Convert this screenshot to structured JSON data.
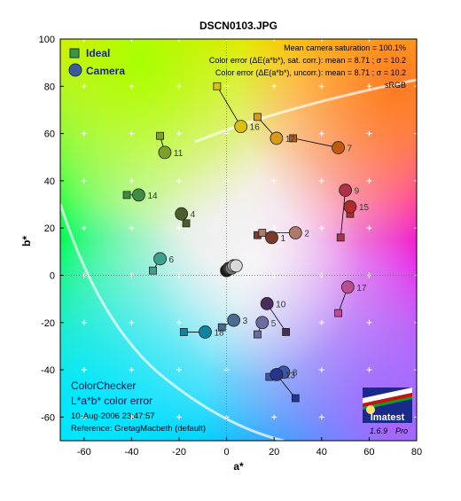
{
  "window": {
    "title": "DSCN0103.JPG"
  },
  "chart_data": {
    "type": "scatter",
    "title": "DSCN0103.JPG",
    "xlabel": "a*",
    "ylabel": "b*",
    "xlim": [
      -70,
      80
    ],
    "ylim": [
      -70,
      100
    ],
    "xticks": [
      -60,
      -40,
      -20,
      0,
      20,
      40,
      60,
      80
    ],
    "yticks": [
      -60,
      -40,
      -20,
      0,
      20,
      40,
      60,
      80,
      100
    ],
    "grid": true,
    "legend": {
      "position": "top-left",
      "entries": [
        {
          "label": "Ideal",
          "marker": "square"
        },
        {
          "label": "Camera",
          "marker": "circle"
        }
      ]
    },
    "stats": [
      "Mean camera saturation = 100.1%",
      "Color error (ΔE(a*b*), sat. corr.):  mean = 8.71 ;  σ = 10.2",
      "Color error (ΔE(a*b*), uncorr.):  mean = 8.71 ;  σ = 10.2",
      "sRGB"
    ],
    "info": {
      "chart_name": "ColorChecker",
      "subtitle": "L*a*b* color error",
      "timestamp": "10-Aug-2006 23:47:57",
      "reference": "Reference: GretagMacbeth (default)"
    },
    "logo": {
      "name": "Imatest",
      "version": "1.6.9",
      "edition": "Pro"
    },
    "patches": [
      {
        "label": "1",
        "ideal": [
          13,
          17
        ],
        "camera": [
          19,
          16
        ],
        "color": "#7a3a2c"
      },
      {
        "label": "2",
        "ideal": [
          15,
          18
        ],
        "camera": [
          29,
          18
        ],
        "color": "#b07a6a"
      },
      {
        "label": "3",
        "ideal": [
          -2,
          -22
        ],
        "camera": [
          3,
          -19
        ],
        "color": "#4a6a90"
      },
      {
        "label": "4",
        "ideal": [
          -17,
          22
        ],
        "camera": [
          -19,
          26
        ],
        "color": "#4e5e28"
      },
      {
        "label": "5",
        "ideal": [
          13,
          -25
        ],
        "camera": [
          15,
          -20
        ],
        "color": "#6e6aa2"
      },
      {
        "label": "6",
        "ideal": [
          -31,
          2
        ],
        "camera": [
          -28,
          7
        ],
        "color": "#40a090"
      },
      {
        "label": "7",
        "ideal": [
          28,
          58
        ],
        "camera": [
          47,
          54
        ],
        "color": "#c05a12"
      },
      {
        "label": "8",
        "ideal": [
          18,
          -43
        ],
        "camera": [
          24,
          -41
        ],
        "color": "#3c54a8"
      },
      {
        "label": "9",
        "ideal": [
          48,
          16
        ],
        "camera": [
          50,
          36
        ],
        "color": "#b0304a"
      },
      {
        "label": "10",
        "ideal": [
          25,
          -24
        ],
        "camera": [
          17,
          -12
        ],
        "color": "#4c2c5c"
      },
      {
        "label": "11",
        "ideal": [
          -28,
          59
        ],
        "camera": [
          -26,
          52
        ],
        "color": "#7ca028"
      },
      {
        "label": "12",
        "ideal": [
          13,
          67
        ],
        "camera": [
          21,
          58
        ],
        "color": "#d89a18"
      },
      {
        "label": "13",
        "ideal": [
          29,
          -52
        ],
        "camera": [
          21,
          -42
        ],
        "color": "#24368a"
      },
      {
        "label": "14",
        "ideal": [
          -42,
          34
        ],
        "camera": [
          -37,
          34
        ],
        "color": "#408c42"
      },
      {
        "label": "15",
        "ideal": [
          52,
          26
        ],
        "camera": [
          52,
          29
        ],
        "color": "#b02c2c"
      },
      {
        "label": "16",
        "ideal": [
          -4,
          80
        ],
        "camera": [
          6,
          63
        ],
        "color": "#dcc010"
      },
      {
        "label": "17",
        "ideal": [
          47,
          -16
        ],
        "camera": [
          51,
          -5
        ],
        "color": "#bc4c90"
      },
      {
        "label": "18",
        "ideal": [
          -18,
          -24
        ],
        "camera": [
          -9,
          -24
        ],
        "color": "#0e84a0"
      },
      {
        "label": "",
        "ideal": [
          0,
          2
        ],
        "camera": [
          0,
          2
        ],
        "color": "#1a1a1a"
      },
      {
        "label": "",
        "ideal": [
          1,
          3
        ],
        "camera": [
          1,
          3
        ],
        "color": "#3a3a3a"
      },
      {
        "label": "",
        "ideal": [
          2,
          3
        ],
        "camera": [
          2,
          3
        ],
        "color": "#7a7a7a"
      },
      {
        "label": "",
        "ideal": [
          3,
          4
        ],
        "camera": [
          3,
          4
        ],
        "color": "#b0b0b0"
      },
      {
        "label": "",
        "ideal": [
          4,
          4
        ],
        "camera": [
          4,
          4
        ],
        "color": "#d8d8d8"
      }
    ]
  }
}
